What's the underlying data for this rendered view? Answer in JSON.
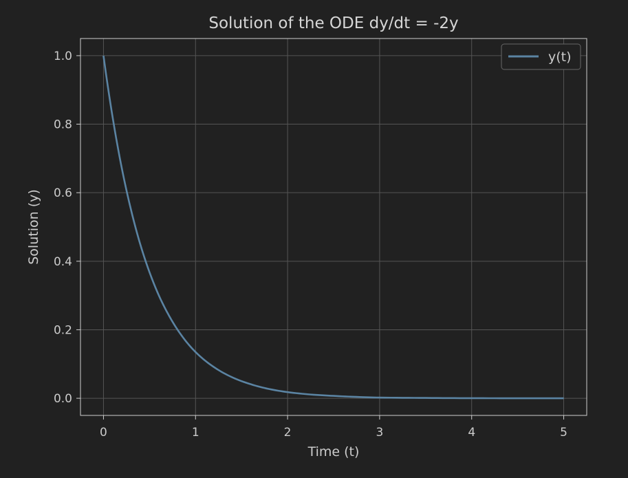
{
  "chart_data": {
    "type": "line",
    "title": "Solution of the ODE dy/dt = -2y",
    "xlabel": "Time (t)",
    "ylabel": "Solution (y)",
    "xlim": [
      -0.25,
      5.25
    ],
    "ylim": [
      -0.05,
      1.05
    ],
    "x_ticks": [
      0,
      1,
      2,
      3,
      4,
      5
    ],
    "x_tick_labels": [
      "0",
      "1",
      "2",
      "3",
      "4",
      "5"
    ],
    "y_ticks": [
      0.0,
      0.2,
      0.4,
      0.6,
      0.8,
      1.0
    ],
    "y_tick_labels": [
      "0.0",
      "0.2",
      "0.4",
      "0.6",
      "0.8",
      "1.0"
    ],
    "grid": true,
    "legend": {
      "position": "top-right"
    },
    "series": [
      {
        "name": "y(t)",
        "color": "#5b84a3",
        "x": [
          0,
          0.1,
          0.2,
          0.3,
          0.4,
          0.5,
          0.6,
          0.7,
          0.8,
          0.9,
          1.0,
          1.2,
          1.4,
          1.6,
          1.8,
          2.0,
          2.25,
          2.5,
          2.75,
          3.0,
          3.5,
          4.0,
          4.5,
          5.0
        ],
        "y": [
          1.0,
          0.819,
          0.67,
          0.549,
          0.449,
          0.368,
          0.301,
          0.247,
          0.202,
          0.165,
          0.135,
          0.091,
          0.061,
          0.041,
          0.027,
          0.018,
          0.011,
          0.007,
          0.004,
          0.002,
          0.001,
          0.0003,
          0.0001,
          0.0
        ]
      }
    ]
  },
  "colors": {
    "background": "#212121",
    "axes_face": "#212121",
    "spine": "#cfcfcf",
    "grid": "#555555",
    "text": "#cccccc",
    "title": "#d6d6d6",
    "legend_border": "#666666"
  }
}
